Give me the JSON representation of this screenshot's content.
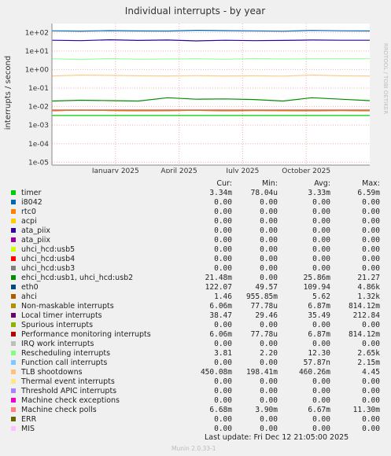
{
  "chart_data": {
    "type": "line",
    "title": "Individual interrupts - by year",
    "ylabel": "interrupts / second",
    "side_label": "RRDTOOL / TOBI OETIKER",
    "y_scale": "log",
    "ylim": [
      7e-06,
      300
    ],
    "y_ticks": [
      "1e+02",
      "1e+01",
      "1e+00",
      "1e-01",
      "1e-02",
      "1e-03",
      "1e-04",
      "1e-05"
    ],
    "x_ticks": [
      "January 2025",
      "April 2025",
      "July 2025",
      "October 2025"
    ],
    "series": [
      {
        "name": "eth0",
        "color": "#0066b3",
        "values": [
          122,
          118,
          125,
          120,
          119,
          130,
          124,
          121,
          116,
          128,
          122,
          120
        ]
      },
      {
        "name": "TLB shootdowns",
        "color": "#ffcc88",
        "values": [
          0.45,
          0.5,
          0.48,
          0.46,
          0.45,
          0.47,
          0.45,
          0.46,
          0.44,
          0.5,
          0.46,
          0.45
        ]
      },
      {
        "name": "Local timer interrupts",
        "color": "#330099",
        "values": [
          38,
          36,
          40,
          37,
          39,
          35,
          38,
          36,
          37,
          39,
          38,
          38
        ]
      },
      {
        "name": "Rescheduling interrupts",
        "color": "#99ff99",
        "values": [
          3.8,
          3.5,
          3.9,
          3.6,
          3.7,
          3.8,
          3.6,
          3.9,
          3.7,
          3.8,
          3.8,
          3.8
        ]
      },
      {
        "name": "ehci_hcd:usb1, uhci_hcd:usb2",
        "color": "#008f00",
        "values": [
          0.02,
          0.022,
          0.021,
          0.02,
          0.03,
          0.025,
          0.026,
          0.024,
          0.02,
          0.03,
          0.025,
          0.021
        ]
      },
      {
        "name": "Performance monitoring interrupts",
        "color": "#cc0000",
        "values": [
          0.006,
          0.0065,
          0.0062,
          0.006,
          0.0061,
          0.0063,
          0.006,
          0.0062,
          0.0061,
          0.006,
          0.0062,
          0.006
        ]
      },
      {
        "name": "Non-maskable interrupts",
        "color": "#cc7700",
        "values": [
          0.006,
          0.0065,
          0.0062,
          0.006,
          0.0061,
          0.0063,
          0.006,
          0.0062,
          0.0061,
          0.006,
          0.0062,
          0.006
        ]
      },
      {
        "name": "Machine check polls",
        "color": "#ee7777",
        "values": [
          0.0067,
          0.0067,
          0.0067,
          0.0067,
          0.0067,
          0.0067,
          0.0067,
          0.0067,
          0.0067,
          0.0067,
          0.0067,
          0.0067
        ]
      },
      {
        "name": "timer",
        "color": "#00cc00",
        "values": [
          0.0033,
          0.0033,
          0.0033,
          0.0033,
          0.0033,
          0.0033,
          0.0033,
          0.0033,
          0.0033,
          0.0033,
          0.0033,
          0.0033
        ]
      }
    ],
    "legend_headers": [
      "Cur:",
      "Min:",
      "Avg:",
      "Max:"
    ],
    "legend": [
      {
        "name": "timer",
        "color": "#00cc00",
        "cur": "3.34m",
        "min": "78.04u",
        "avg": "3.33m",
        "max": "6.59m"
      },
      {
        "name": "i8042",
        "color": "#0066b3",
        "cur": "0.00",
        "min": "0.00",
        "avg": "0.00",
        "max": "0.00"
      },
      {
        "name": "rtc0",
        "color": "#ff8000",
        "cur": "0.00",
        "min": "0.00",
        "avg": "0.00",
        "max": "0.00"
      },
      {
        "name": "acpi",
        "color": "#ffcc00",
        "cur": "0.00",
        "min": "0.00",
        "avg": "0.00",
        "max": "0.00"
      },
      {
        "name": "ata_piix",
        "color": "#330099",
        "cur": "0.00",
        "min": "0.00",
        "avg": "0.00",
        "max": "0.00"
      },
      {
        "name": "ata_piix",
        "color": "#990099",
        "cur": "0.00",
        "min": "0.00",
        "avg": "0.00",
        "max": "0.00"
      },
      {
        "name": "uhci_hcd:usb5",
        "color": "#ccff00",
        "cur": "0.00",
        "min": "0.00",
        "avg": "0.00",
        "max": "0.00"
      },
      {
        "name": "uhci_hcd:usb4",
        "color": "#ff0000",
        "cur": "0.00",
        "min": "0.00",
        "avg": "0.00",
        "max": "0.00"
      },
      {
        "name": "uhci_hcd:usb3",
        "color": "#808080",
        "cur": "0.00",
        "min": "0.00",
        "avg": "0.00",
        "max": "0.00"
      },
      {
        "name": "ehci_hcd:usb1, uhci_hcd:usb2",
        "color": "#008f00",
        "cur": "21.48m",
        "min": "0.00",
        "avg": "25.86m",
        "max": "21.27"
      },
      {
        "name": "eth0",
        "color": "#00487d",
        "cur": "122.07",
        "min": "49.57",
        "avg": "109.94",
        "max": "4.86k"
      },
      {
        "name": "ahci",
        "color": "#b35a00",
        "cur": "1.46",
        "min": "955.85m",
        "avg": "5.62",
        "max": "1.32k"
      },
      {
        "name": "Non-maskable interrupts",
        "color": "#b38f00",
        "cur": "6.06m",
        "min": "77.78u",
        "avg": "6.87m",
        "max": "814.12m"
      },
      {
        "name": "Local timer interrupts",
        "color": "#6b006b",
        "cur": "38.47",
        "min": "29.46",
        "avg": "35.49",
        "max": "212.84"
      },
      {
        "name": "Spurious interrupts",
        "color": "#8fb300",
        "cur": "0.00",
        "min": "0.00",
        "avg": "0.00",
        "max": "0.00"
      },
      {
        "name": "Performance monitoring interrupts",
        "color": "#b30000",
        "cur": "6.06m",
        "min": "77.78u",
        "avg": "6.87m",
        "max": "814.12m"
      },
      {
        "name": "IRQ work interrupts",
        "color": "#bebebe",
        "cur": "0.00",
        "min": "0.00",
        "avg": "0.00",
        "max": "0.00"
      },
      {
        "name": "Rescheduling interrupts",
        "color": "#80ff80",
        "cur": "3.81",
        "min": "2.20",
        "avg": "12.30",
        "max": "2.65k"
      },
      {
        "name": "Function call interrupts",
        "color": "#80c9ff",
        "cur": "0.00",
        "min": "0.00",
        "avg": "57.87n",
        "max": "2.15m"
      },
      {
        "name": "TLB shootdowns",
        "color": "#ffc080",
        "cur": "450.08m",
        "min": "198.41m",
        "avg": "460.26m",
        "max": "4.45"
      },
      {
        "name": "Thermal event interrupts",
        "color": "#ffe680",
        "cur": "0.00",
        "min": "0.00",
        "avg": "0.00",
        "max": "0.00"
      },
      {
        "name": "Threshold APIC interrupts",
        "color": "#aa80ff",
        "cur": "0.00",
        "min": "0.00",
        "avg": "0.00",
        "max": "0.00"
      },
      {
        "name": "Machine check exceptions",
        "color": "#ee00cc",
        "cur": "0.00",
        "min": "0.00",
        "avg": "0.00",
        "max": "0.00"
      },
      {
        "name": "Machine check polls",
        "color": "#ff8080",
        "cur": "6.68m",
        "min": "3.90m",
        "avg": "6.67m",
        "max": "11.30m"
      },
      {
        "name": "ERR",
        "color": "#666600",
        "cur": "0.00",
        "min": "0.00",
        "avg": "0.00",
        "max": "0.00"
      },
      {
        "name": "MIS",
        "color": "#ffbfff",
        "cur": "0.00",
        "min": "0.00",
        "avg": "0.00",
        "max": "0.00"
      }
    ]
  },
  "footer": {
    "last_update": "Last update:  Fri Dec 12 21:05:00 2025",
    "munin": "Munin 2.0.33-1"
  }
}
